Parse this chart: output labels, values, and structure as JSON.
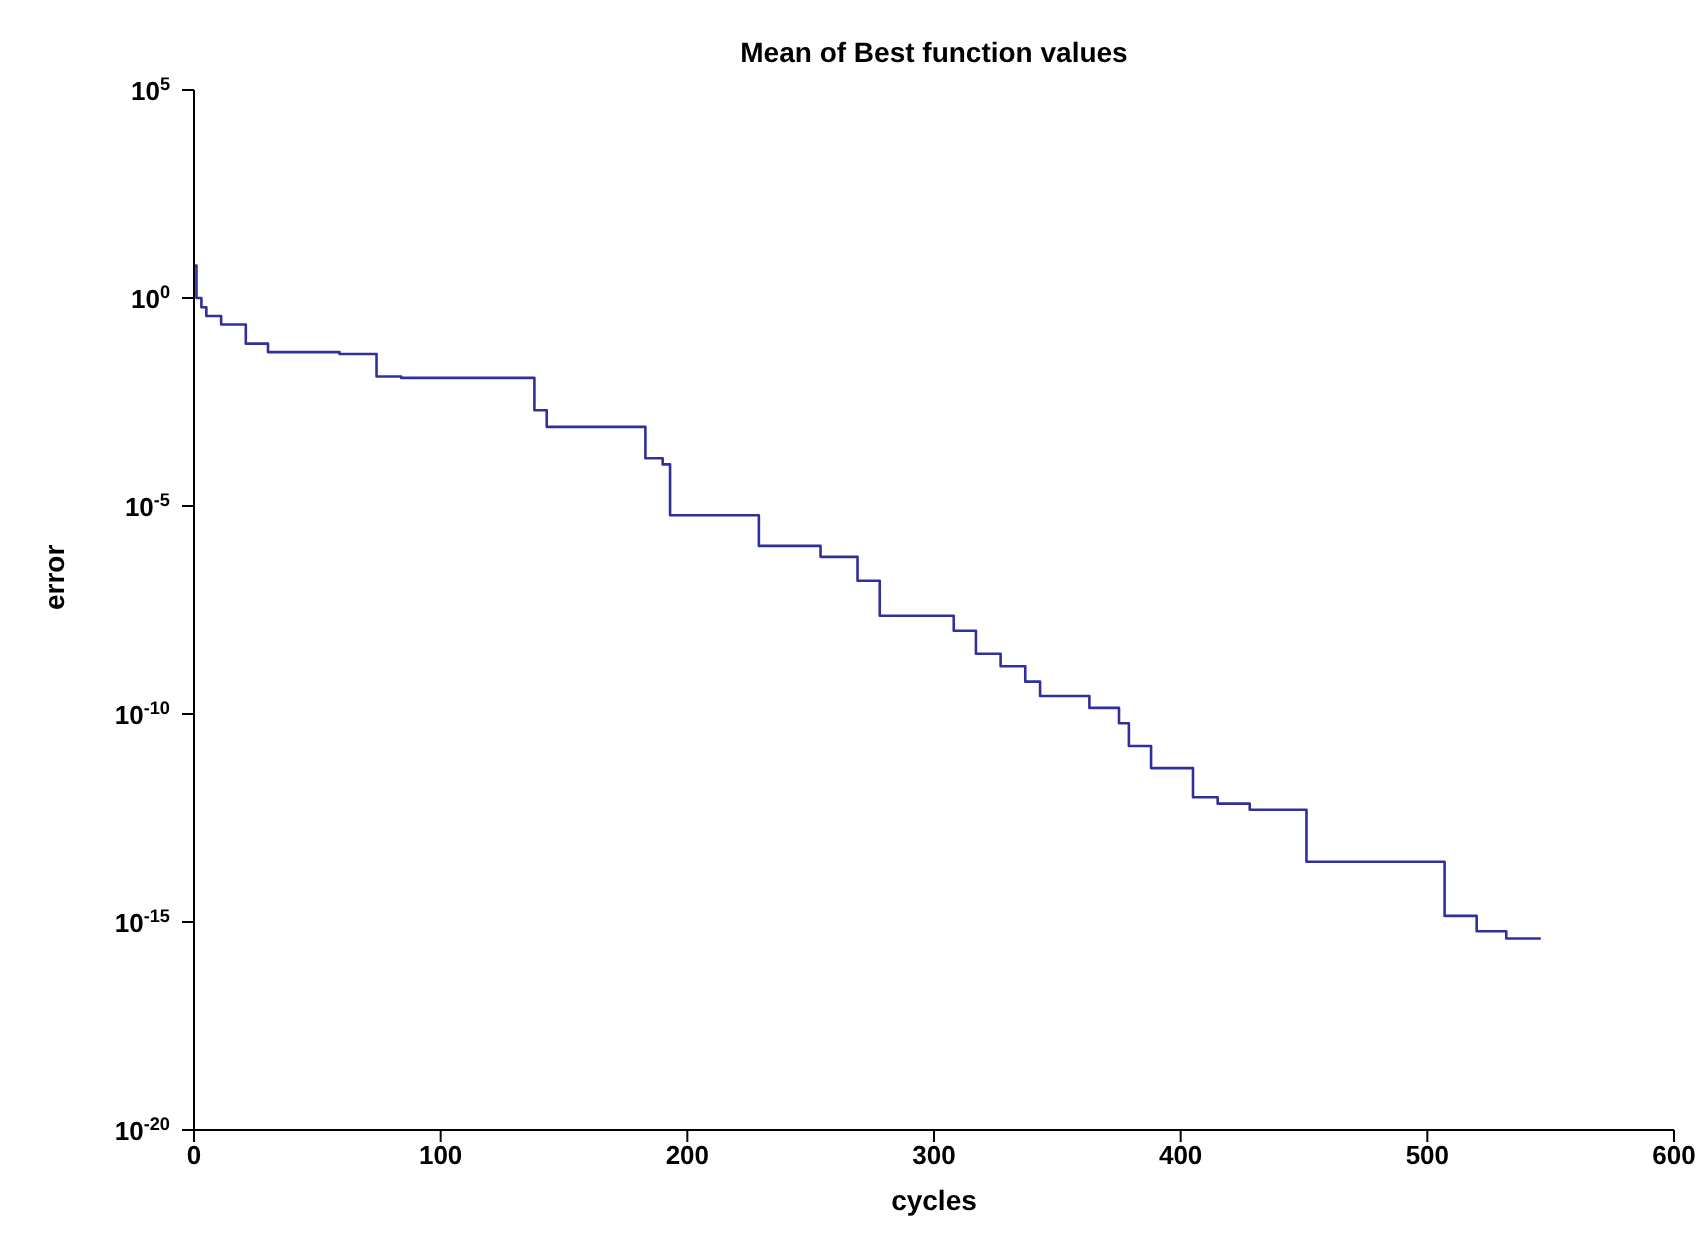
{
  "chart_data": {
    "type": "step",
    "title": "Mean of Best function values",
    "xlabel": "cycles",
    "ylabel": "error",
    "log": "y",
    "marker": "none",
    "line_style": "solid",
    "x": [
      0,
      1,
      3,
      5,
      11,
      21,
      30,
      59,
      74,
      84,
      138,
      143,
      183,
      190,
      193,
      229,
      254,
      269,
      278,
      308,
      317,
      327,
      337,
      343,
      363,
      375,
      379,
      388,
      405,
      415,
      428,
      451,
      507,
      520,
      532,
      546
    ],
    "series": [
      {
        "color": "#30309a",
        "values": [
          6,
          1,
          0.6,
          0.37,
          0.23,
          0.08,
          0.05,
          0.045,
          0.013,
          0.012,
          0.002,
          0.0008,
          0.00014,
          0.0001,
          6e-06,
          1.1e-06,
          6e-07,
          1.6e-07,
          2.3e-08,
          1e-08,
          2.8e-09,
          1.4e-09,
          6e-10,
          2.7e-10,
          1.4e-10,
          6e-11,
          1.7e-11,
          5e-12,
          1e-12,
          7e-13,
          5e-13,
          2.8e-14,
          1.4e-15,
          6e-16,
          4e-16,
          4e-16
        ]
      }
    ],
    "xlim": [
      0,
      600
    ],
    "xticks": [
      0,
      100,
      200,
      300,
      400,
      500,
      600
    ],
    "ylim": [
      1e-20,
      100000
    ],
    "yticks": [
      {
        "value": 1e-20,
        "label": "10$^{-20}$"
      },
      {
        "value": 1e-15,
        "label": "10$^{-15}$"
      },
      {
        "value": 1e-10,
        "label": "10$^{-10}$"
      },
      {
        "value": 1e-05,
        "label": "10$^{-5}$"
      },
      {
        "value": 1,
        "label": "10$^{0}$"
      },
      {
        "value": 100000,
        "label": "10$^{5}$"
      }
    ]
  }
}
